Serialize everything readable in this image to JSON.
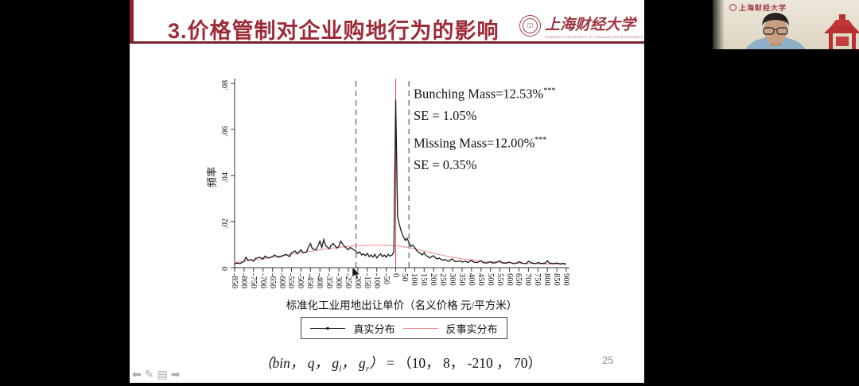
{
  "header": {
    "title": "3.价格管制对企业购地行为的影响",
    "logo_text": "上海财经大学",
    "logo_subtext": "SHANGHAI UNIVERSITY OF FINANCE AND ECONOMICS"
  },
  "annotations": {
    "bunching_mass": "Bunching Mass=12.53%",
    "missing_mass": "Missing Mass=12.00%",
    "stars": "***",
    "bunching_se": "SE = 1.05%",
    "missing_se": "SE = 0.35%"
  },
  "formula": {
    "lhs_italic": "（bin， q， g",
    "sub_l": "l",
    "mid_italic": "， g",
    "sub_r": "r",
    "close_italic": "）",
    "rhs": " = （10， 8， -210 ， 70）"
  },
  "footer": {
    "page_number": "25",
    "icons": [
      {
        "name": "previous-slide",
        "glyph": "⬅"
      },
      {
        "name": "pen-tool",
        "glyph": "✎"
      },
      {
        "name": "slides-panel",
        "glyph": "▤"
      },
      {
        "name": "next-slide",
        "glyph": "➡"
      }
    ]
  },
  "webcam": {
    "logo_text": "上海财经大学"
  },
  "chart_data": {
    "type": "line",
    "title": "",
    "xlabel": "标准化工业用地出让单价（名义价格 元/平方米）",
    "ylabel": "频率",
    "xlim": [
      -850,
      900
    ],
    "ylim": [
      0,
      0.08
    ],
    "grid": false,
    "legend_position": "bottom",
    "x_ticks": [
      -850,
      -800,
      -750,
      -700,
      -650,
      -600,
      -550,
      -500,
      -450,
      -400,
      -350,
      -300,
      -250,
      -200,
      -150,
      -100,
      -50,
      0,
      50,
      100,
      150,
      200,
      250,
      300,
      350,
      400,
      450,
      500,
      550,
      600,
      650,
      700,
      750,
      800,
      850,
      900
    ],
    "y_ticks": [
      {
        "v": 0,
        "label": "0"
      },
      {
        "v": 0.02,
        "label": ".02"
      },
      {
        "v": 0.04,
        "label": ".04"
      },
      {
        "v": 0.06,
        "label": ".06"
      },
      {
        "v": 0.08,
        "label": ".08"
      }
    ],
    "reference_lines": {
      "notch_price": 0,
      "lower_bound": -210,
      "upper_bound": 70
    },
    "colors": {
      "real": "#1a1a1a",
      "counterfactual": "#ef8a8a",
      "notch_line": "#e05050",
      "bound_line": "#5e77a3",
      "accent_red": "#9e2b38"
    },
    "legend": [
      {
        "name": "真实分布",
        "color": "#1a1a1a"
      },
      {
        "name": "反事实分布",
        "color": "#ef8a8a"
      }
    ],
    "series": [
      {
        "name": "真实分布",
        "points": [
          [
            -850,
            0.0015
          ],
          [
            -840,
            0.002
          ],
          [
            -820,
            0.0018
          ],
          [
            -800,
            0.0028
          ],
          [
            -790,
            0.0045
          ],
          [
            -780,
            0.0032
          ],
          [
            -760,
            0.0035
          ],
          [
            -750,
            0.0028
          ],
          [
            -740,
            0.004
          ],
          [
            -720,
            0.0045
          ],
          [
            -700,
            0.0038
          ],
          [
            -690,
            0.005
          ],
          [
            -670,
            0.0042
          ],
          [
            -650,
            0.0048
          ],
          [
            -640,
            0.0055
          ],
          [
            -620,
            0.0045
          ],
          [
            -600,
            0.005
          ],
          [
            -580,
            0.0058
          ],
          [
            -560,
            0.0048
          ],
          [
            -550,
            0.0065
          ],
          [
            -530,
            0.0072
          ],
          [
            -520,
            0.006
          ],
          [
            -500,
            0.0078
          ],
          [
            -490,
            0.0065
          ],
          [
            -470,
            0.0068
          ],
          [
            -460,
            0.009
          ],
          [
            -450,
            0.0105
          ],
          [
            -440,
            0.0082
          ],
          [
            -420,
            0.0078
          ],
          [
            -410,
            0.0095
          ],
          [
            -400,
            0.0115
          ],
          [
            -390,
            0.0088
          ],
          [
            -380,
            0.0122
          ],
          [
            -370,
            0.0095
          ],
          [
            -350,
            0.0082
          ],
          [
            -340,
            0.0098
          ],
          [
            -330,
            0.0105
          ],
          [
            -310,
            0.0085
          ],
          [
            -300,
            0.0092
          ],
          [
            -290,
            0.0115
          ],
          [
            -280,
            0.0102
          ],
          [
            -270,
            0.0092
          ],
          [
            -260,
            0.0085
          ],
          [
            -250,
            0.0078
          ],
          [
            -240,
            0.0088
          ],
          [
            -230,
            0.0082
          ],
          [
            -210,
            0.0072
          ],
          [
            -200,
            0.0062
          ],
          [
            -190,
            0.0068
          ],
          [
            -180,
            0.0055
          ],
          [
            -170,
            0.006
          ],
          [
            -160,
            0.0052
          ],
          [
            -150,
            0.0062
          ],
          [
            -140,
            0.0048
          ],
          [
            -130,
            0.0055
          ],
          [
            -120,
            0.0045
          ],
          [
            -110,
            0.0058
          ],
          [
            -100,
            0.0042
          ],
          [
            -90,
            0.0052
          ],
          [
            -80,
            0.006
          ],
          [
            -70,
            0.0048
          ],
          [
            -60,
            0.0055
          ],
          [
            -50,
            0.0045
          ],
          [
            -40,
            0.0058
          ],
          [
            -30,
            0.005
          ],
          [
            -20,
            0.0055
          ],
          [
            -10,
            0.0068
          ],
          [
            0,
            0.073
          ],
          [
            10,
            0.022
          ],
          [
            20,
            0.0185
          ],
          [
            30,
            0.0155
          ],
          [
            40,
            0.0135
          ],
          [
            50,
            0.0118
          ],
          [
            60,
            0.0128
          ],
          [
            70,
            0.0108
          ],
          [
            80,
            0.0092
          ],
          [
            90,
            0.0098
          ],
          [
            100,
            0.0088
          ],
          [
            110,
            0.0075
          ],
          [
            120,
            0.0068
          ],
          [
            130,
            0.0062
          ],
          [
            140,
            0.0055
          ],
          [
            150,
            0.0065
          ],
          [
            160,
            0.0052
          ],
          [
            170,
            0.0048
          ],
          [
            180,
            0.0042
          ],
          [
            190,
            0.0048
          ],
          [
            200,
            0.0052
          ],
          [
            210,
            0.0042
          ],
          [
            220,
            0.0038
          ],
          [
            230,
            0.0042
          ],
          [
            240,
            0.0035
          ],
          [
            250,
            0.0032
          ],
          [
            260,
            0.0036
          ],
          [
            270,
            0.003
          ],
          [
            280,
            0.0028
          ],
          [
            290,
            0.0034
          ],
          [
            300,
            0.0038
          ],
          [
            310,
            0.0028
          ],
          [
            320,
            0.0026
          ],
          [
            340,
            0.003
          ],
          [
            350,
            0.0024
          ],
          [
            370,
            0.0028
          ],
          [
            380,
            0.0022
          ],
          [
            400,
            0.0032
          ],
          [
            410,
            0.0024
          ],
          [
            430,
            0.0022
          ],
          [
            450,
            0.003
          ],
          [
            460,
            0.0022
          ],
          [
            480,
            0.002
          ],
          [
            500,
            0.0026
          ],
          [
            510,
            0.002
          ],
          [
            530,
            0.0022
          ],
          [
            550,
            0.003
          ],
          [
            560,
            0.0021
          ],
          [
            580,
            0.0019
          ],
          [
            600,
            0.0024
          ],
          [
            620,
            0.0018
          ],
          [
            640,
            0.002
          ],
          [
            650,
            0.0026
          ],
          [
            670,
            0.0019
          ],
          [
            690,
            0.0018
          ],
          [
            700,
            0.0028
          ],
          [
            720,
            0.002
          ],
          [
            740,
            0.0018
          ],
          [
            750,
            0.0022
          ],
          [
            770,
            0.0018
          ],
          [
            790,
            0.002
          ],
          [
            800,
            0.003
          ],
          [
            810,
            0.002
          ],
          [
            830,
            0.0018
          ],
          [
            850,
            0.002
          ],
          [
            870,
            0.0016
          ],
          [
            880,
            0.0019
          ],
          [
            900,
            0.0016
          ]
        ]
      },
      {
        "name": "反事实分布",
        "points": [
          [
            -850,
            0.0022
          ],
          [
            -800,
            0.0028
          ],
          [
            -750,
            0.0033
          ],
          [
            -700,
            0.0039
          ],
          [
            -650,
            0.0045
          ],
          [
            -600,
            0.0052
          ],
          [
            -550,
            0.0058
          ],
          [
            -500,
            0.0065
          ],
          [
            -450,
            0.0071
          ],
          [
            -400,
            0.0077
          ],
          [
            -350,
            0.0083
          ],
          [
            -300,
            0.0088
          ],
          [
            -250,
            0.0092
          ],
          [
            -200,
            0.0095
          ],
          [
            -150,
            0.0097
          ],
          [
            -100,
            0.0098
          ],
          [
            -50,
            0.0097
          ],
          [
            0,
            0.0095
          ],
          [
            50,
            0.009
          ],
          [
            100,
            0.0082
          ],
          [
            150,
            0.0072
          ],
          [
            200,
            0.0062
          ],
          [
            250,
            0.0053
          ],
          [
            300,
            0.0045
          ],
          [
            350,
            0.0038
          ],
          [
            400,
            0.0033
          ],
          [
            450,
            0.0029
          ],
          [
            500,
            0.0026
          ],
          [
            550,
            0.0023
          ],
          [
            600,
            0.0021
          ],
          [
            650,
            0.0019
          ],
          [
            700,
            0.0018
          ],
          [
            750,
            0.0017
          ],
          [
            800,
            0.0016
          ],
          [
            850,
            0.0015
          ],
          [
            900,
            0.0014
          ]
        ]
      }
    ]
  }
}
